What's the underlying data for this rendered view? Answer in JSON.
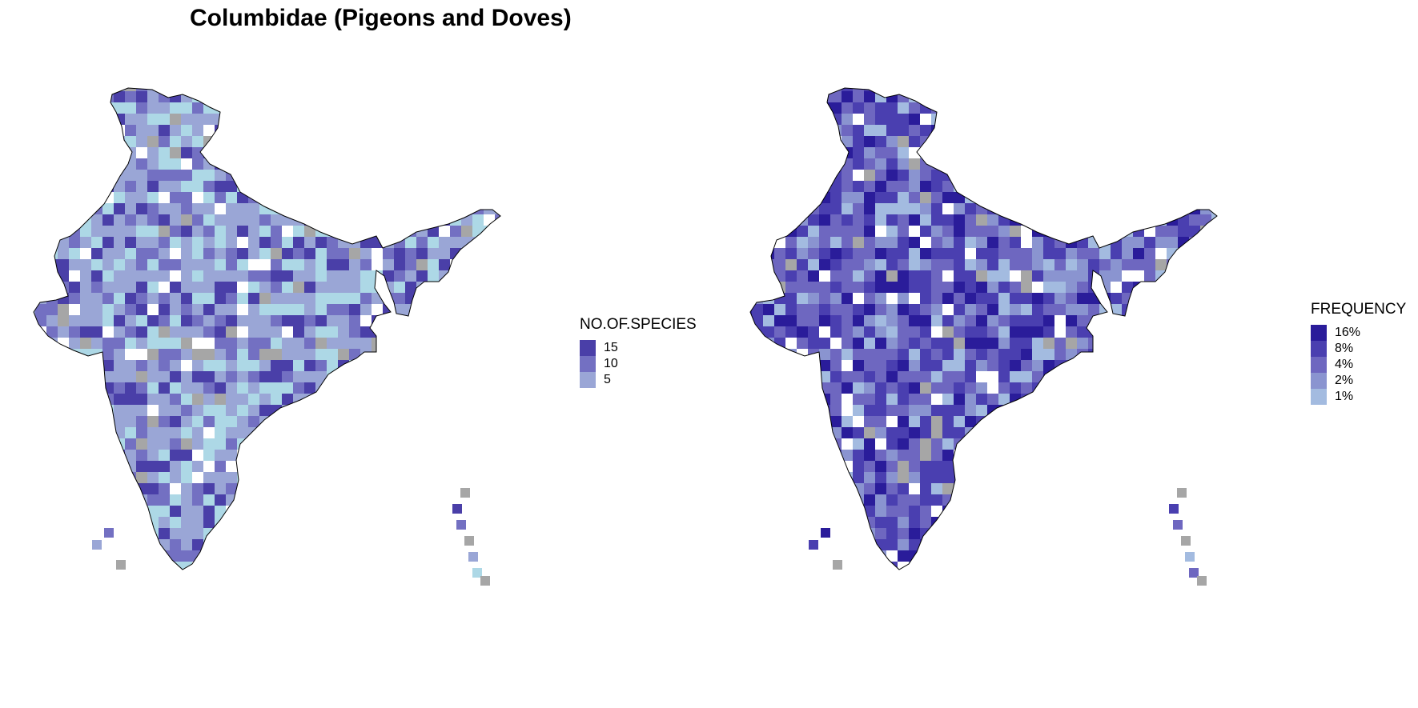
{
  "title": "Columbidae (Pigeons and Doves)",
  "legends": {
    "species": {
      "title": "NO.OF.SPECIES",
      "items": [
        {
          "label": "15",
          "color": "#4a3fa8"
        },
        {
          "label": "10",
          "color": "#7370c2"
        },
        {
          "label": "5",
          "color": "#9aa6d6"
        }
      ]
    },
    "frequency": {
      "title": "FREQUENCY",
      "items": [
        {
          "label": "16%",
          "color": "#2a1c9a"
        },
        {
          "label": "8%",
          "color": "#4a3fb0"
        },
        {
          "label": "4%",
          "color": "#6e67c0"
        },
        {
          "label": "2%",
          "color": "#8a94d0"
        },
        {
          "label": "1%",
          "color": "#a3bbe0"
        }
      ]
    }
  },
  "colors": {
    "no_data": "#a6a6a6",
    "light": "#add8e6",
    "outline": "#000000"
  }
}
